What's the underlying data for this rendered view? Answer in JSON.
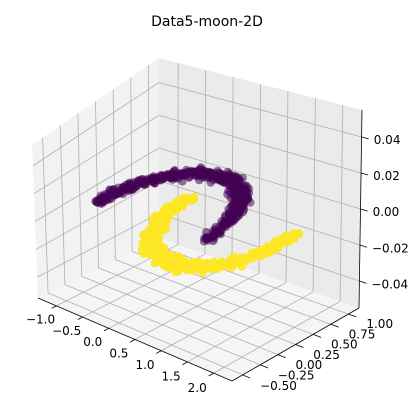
{
  "chart_data": {
    "type": "scatter",
    "projection": "3d",
    "title": "Data5-moon-2D",
    "xlabel": "",
    "ylabel": "",
    "zlabel": "",
    "xlim": [
      -1.35,
      2.35
    ],
    "ylim": [
      -0.65,
      1.15
    ],
    "zlim": [
      -0.055,
      0.055
    ],
    "x_ticks": [
      "−1.0",
      "−0.5",
      "0.0",
      "0.5",
      "1.0",
      "1.5",
      "2.0"
    ],
    "y_ticks": [
      "−0.50",
      "−0.25",
      "0.00",
      "0.25",
      "0.50",
      "0.75",
      "1.00"
    ],
    "z_ticks": [
      "−0.04",
      "−0.02",
      "0.00",
      "0.02",
      "0.04"
    ],
    "grid": true,
    "colormap": "viridis",
    "series": [
      {
        "color": "#440154",
        "alpha": 0.55,
        "shape": "upper-moon",
        "center": [
          0,
          0
        ],
        "radius": 1.0,
        "angle_range_deg": [
          0,
          180
        ],
        "noise": 0.05,
        "z": 0,
        "n_points": 500
      },
      {
        "color": "#fde725",
        "alpha": 0.9,
        "shape": "lower-moon",
        "center": [
          1,
          0.5
        ],
        "radius": 1.0,
        "angle_range_deg": [
          180,
          360
        ],
        "noise": 0.05,
        "z": 0,
        "n_points": 500
      }
    ]
  }
}
